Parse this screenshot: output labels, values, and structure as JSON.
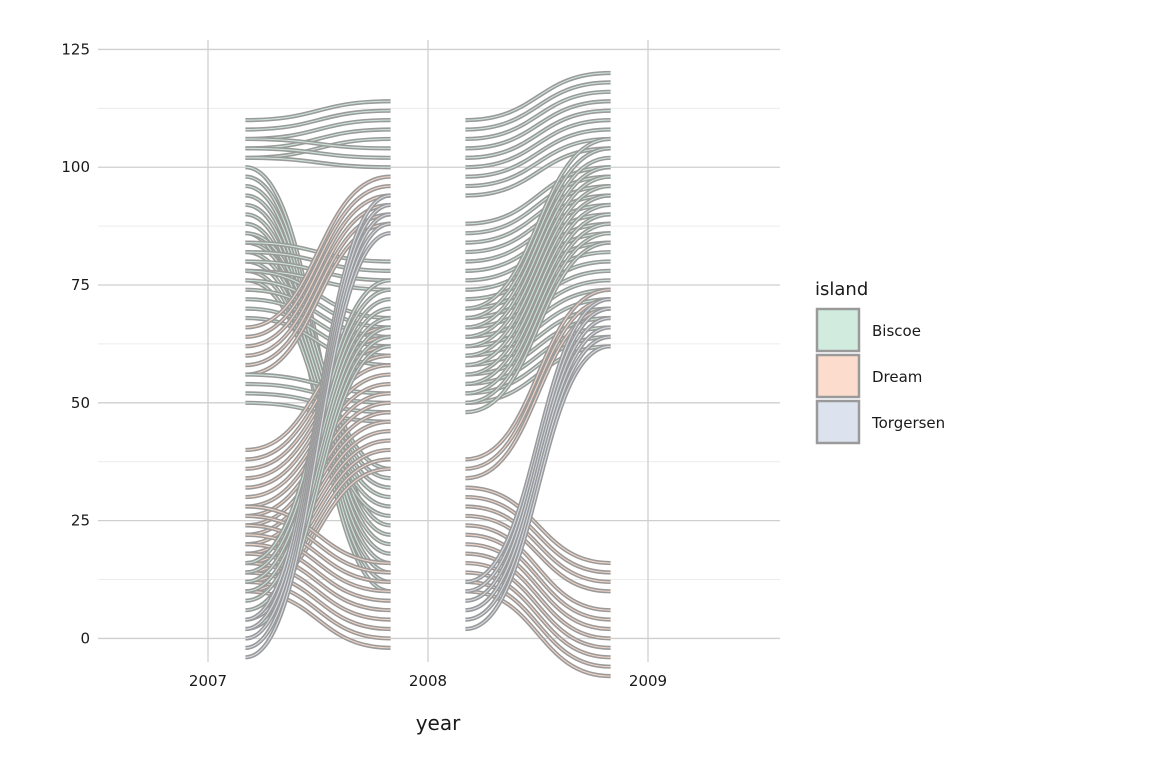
{
  "chart_data": {
    "type": "alluvial",
    "title": "",
    "xlabel": "year",
    "ylabel": "",
    "x_ticks": [
      "2007",
      "2008",
      "2009"
    ],
    "y_ticks": [
      0,
      25,
      50,
      75,
      100,
      125
    ],
    "xlim": [
      2006.5,
      2009.6
    ],
    "ylim": [
      -5,
      127
    ],
    "grid": true,
    "legend": {
      "title": "island",
      "position": "right",
      "items": [
        {
          "label": "Biscoe",
          "color": "#d1ecdf"
        },
        {
          "label": "Dream",
          "color": "#fcdccc"
        },
        {
          "label": "Torgersen",
          "color": "#dde3ee"
        }
      ]
    },
    "stroke_color": "#9a9a9a",
    "stream_width": 2,
    "transitions": [
      {
        "from_year": 2007,
        "to_year": 2008,
        "start_x": 2007.17,
        "end_x": 2007.83,
        "groups": [
          {
            "island": "Biscoe",
            "count": 5,
            "start_y": 110,
            "end_y": 114
          },
          {
            "island": "Biscoe",
            "count": 3,
            "start_y": 106,
            "end_y": 104
          },
          {
            "island": "Biscoe",
            "count": 8,
            "start_y": 100,
            "end_y": 24
          },
          {
            "island": "Biscoe",
            "count": 6,
            "start_y": 86,
            "end_y": 36
          },
          {
            "island": "Biscoe",
            "count": 4,
            "start_y": 84,
            "end_y": 80
          },
          {
            "island": "Biscoe",
            "count": 6,
            "start_y": 78,
            "end_y": 68
          },
          {
            "island": "Dream",
            "count": 6,
            "start_y": 66,
            "end_y": 98
          },
          {
            "island": "Biscoe",
            "count": 4,
            "start_y": 56,
            "end_y": 52
          },
          {
            "island": "Dream",
            "count": 16,
            "start_y": 40,
            "end_y": 66
          },
          {
            "island": "Dream",
            "count": 10,
            "start_y": 28,
            "end_y": 16
          },
          {
            "island": "Biscoe",
            "count": 8,
            "start_y": 16,
            "end_y": 76
          },
          {
            "island": "Torgersen",
            "count": 5,
            "start_y": 4,
            "end_y": 94
          }
        ]
      },
      {
        "from_year": 2008,
        "to_year": 2009,
        "start_x": 2008.17,
        "end_x": 2008.83,
        "groups": [
          {
            "island": "Biscoe",
            "count": 5,
            "start_y": 110,
            "end_y": 120
          },
          {
            "island": "Biscoe",
            "count": 5,
            "start_y": 102,
            "end_y": 112
          },
          {
            "island": "Biscoe",
            "count": 20,
            "start_y": 88,
            "end_y": 100
          },
          {
            "island": "Biscoe",
            "count": 12,
            "start_y": 70,
            "end_y": 106
          },
          {
            "island": "Dream",
            "count": 3,
            "start_y": 38,
            "end_y": 74
          },
          {
            "island": "Dream",
            "count": 4,
            "start_y": 32,
            "end_y": 16
          },
          {
            "island": "Dream",
            "count": 8,
            "start_y": 24,
            "end_y": 6
          },
          {
            "island": "Torgersen",
            "count": 6,
            "start_y": 12,
            "end_y": 72
          }
        ]
      }
    ]
  }
}
